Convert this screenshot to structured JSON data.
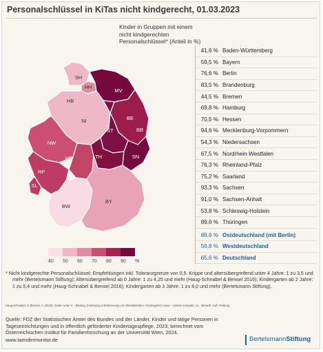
{
  "title": "Personalschlüssel in KiTas nicht kindgerecht, 01.03.2023",
  "subtitle": "Kinder in Gruppen mit einem nicht kindgerechten Personalschlüssel* (Anteil in %)",
  "states": [
    {
      "code": "SH",
      "value": 53.8,
      "color": "#efb8c9",
      "label_dark": true
    },
    {
      "code": "HH",
      "value": 69.8,
      "color": "#e18aa3",
      "label_dark": true
    },
    {
      "code": "MV",
      "value": 94.6,
      "color": "#75083d",
      "label_dark": false
    },
    {
      "code": "HB",
      "value": 44.5,
      "color": "#f6d4df",
      "label_dark": true
    },
    {
      "code": "NI",
      "value": 54.3,
      "color": "#efb8c9",
      "label_dark": true
    },
    {
      "code": "BE",
      "value": 76.6,
      "color": "#b6365f",
      "label_dark": false
    },
    {
      "code": "BB",
      "value": 83.5,
      "color": "#9c1d4b",
      "label_dark": false
    },
    {
      "code": "ST",
      "value": 91.0,
      "color": "#7c0f43",
      "label_dark": false
    },
    {
      "code": "NW",
      "value": 67.5,
      "color": "#cc4e75",
      "label_dark": false
    },
    {
      "code": "HE",
      "value": 70.5,
      "color": "#c24468",
      "label_dark": false
    },
    {
      "code": "TH",
      "value": 89.6,
      "color": "#82113f",
      "label_dark": false
    },
    {
      "code": "SN",
      "value": 93.3,
      "color": "#750a3f",
      "label_dark": false
    },
    {
      "code": "RP",
      "value": 76.3,
      "color": "#bd3b65",
      "label_dark": false
    },
    {
      "code": "SL",
      "value": 75.2,
      "color": "#bd3b65",
      "label_dark": false
    },
    {
      "code": "BW",
      "value": 41.6,
      "color": "#f8dbe4",
      "label_dark": true
    },
    {
      "code": "BY",
      "value": 59.5,
      "color": "#e8a3b6",
      "label_dark": true
    }
  ],
  "legend": {
    "colors": [
      "#f9dfe7",
      "#efb8c9",
      "#e18aa3",
      "#cc4e75",
      "#a9224f",
      "#75083d"
    ],
    "labels": [
      "40",
      "50",
      "60",
      "70",
      "80",
      "90",
      "%"
    ]
  },
  "list": [
    {
      "value": "41,6 %",
      "name": "Baden-Württemberg",
      "highlight": false
    },
    {
      "value": "59,5 %",
      "name": "Bayern",
      "highlight": false
    },
    {
      "value": "76,6 %",
      "name": "Berlin",
      "highlight": false
    },
    {
      "value": "83,5 %",
      "name": "Brandenburg",
      "highlight": false
    },
    {
      "value": "44,5 %",
      "name": "Bremen",
      "highlight": false
    },
    {
      "value": "69,8 %",
      "name": "Hamburg",
      "highlight": false
    },
    {
      "value": "70,5 %",
      "name": "Hessen",
      "highlight": false
    },
    {
      "value": "94,6 %",
      "name": "Mecklenburg-Vorpommern",
      "highlight": false
    },
    {
      "value": "54,3 %",
      "name": "Niedersachsen",
      "highlight": false
    },
    {
      "value": "67,5 %",
      "name": "Nordrhein-Westfalen",
      "highlight": false
    },
    {
      "value": "76,3 %",
      "name": "Rheinland-Pfalz",
      "highlight": false
    },
    {
      "value": "75,2 %",
      "name": "Saarland",
      "highlight": false
    },
    {
      "value": "93,3 %",
      "name": "Sachsen",
      "highlight": false
    },
    {
      "value": "91,0 %",
      "name": "Sachsen-Anhalt",
      "highlight": false
    },
    {
      "value": "53,8 %",
      "name": "Schleswig-Holstein",
      "highlight": false
    },
    {
      "value": "89,6 %",
      "name": "Thüringen",
      "highlight": false
    },
    {
      "value": "88,6 %",
      "name": "Ostdeutschland (mit Berlin)",
      "highlight": true
    },
    {
      "value": "59,8 %",
      "name": "Westdeutschland",
      "highlight": true
    },
    {
      "value": "65,6 %",
      "name": "Deutschland",
      "highlight": true
    }
  ],
  "footnote": "* Nicht kindgerechte Personalschlüssel: Empfehlungen inkl. Toleranzgrenze von 0,5. Krippe und altersübergreifend unter 4 Jahre: 1 zu 3,5 und mehr (Bertelsmann Stiftung); Altersübergreifend ab 0 Jahre: 1 zu 4,25 und mehr (Haug-Schnabel & Bensel 2016); Kindergarten ab 2 Jahre: 1 zu 5,4 und mehr (Haug-Schnabel & Bensel 2016); Kindergarten ab 3 Jahre: 1 zu 8,0 und mehr (Bertelsmann Stiftung).",
  "reference": "Haug-Schnabel, G./Bensel, J. (2016): Kinder unter 3 – Bildung, Erziehung und Betreuung von Kleinstkindern. Kindergarten heute – wissen kompakt. 12., überarb. Aufl. Freiburg.",
  "source": "Quelle: FDZ der Statistischen Ämter des Bundes und der Länder, Kinder und tätige Personen in Tageseinrichtungen und in öffentlich geförderter Kindertagespflege, 2023; berechnet vom Österreichischen Institut für Familienforschung an der Universität Wien, 2024.",
  "website": "www.laendermonitor.de",
  "brand": {
    "part1": "Bertelsmann",
    "part2": "Stiftung"
  }
}
